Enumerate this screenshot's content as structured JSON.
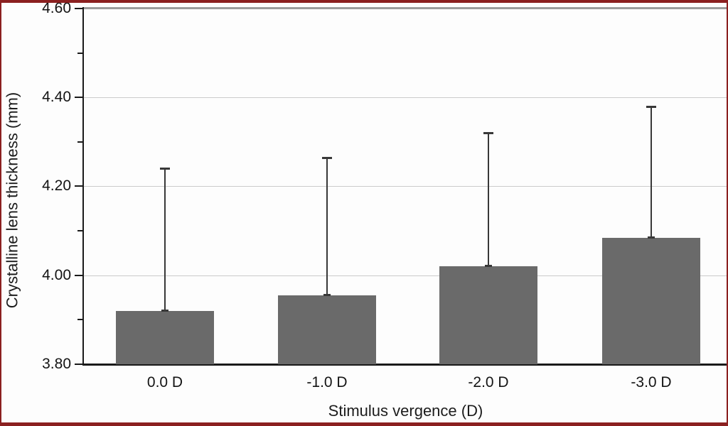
{
  "figure": {
    "frame_color": "#8b2020",
    "background": "#fdfdfd",
    "top_border_line_color": "#9c9c9c",
    "gridline_color": "#cbcbcb",
    "axis_color": "#1a1a1a"
  },
  "chart_data": {
    "type": "bar",
    "title": "",
    "xlabel": "Stimulus vergence (D)",
    "ylabel": "Crystalline lens thickness (mm)",
    "categories": [
      "0.0 D",
      "-1.0 D",
      "-2.0 D",
      "-3.0 D"
    ],
    "values": [
      3.92,
      3.955,
      4.02,
      4.085
    ],
    "error_top": [
      4.24,
      4.265,
      4.32,
      4.38
    ],
    "ylim": [
      3.8,
      4.6
    ],
    "y_major_tick_values": [
      4.6,
      4.4,
      4.2,
      4.0,
      3.8
    ],
    "y_tick_labels": [
      "4.60",
      "4.40",
      "4.20",
      "4.00",
      "3.80"
    ],
    "y_minor_tick_values": [
      4.5,
      4.3,
      4.1,
      3.9
    ],
    "grid": "horizontal-major",
    "legend": "none",
    "bar_color": "#6a6a6a",
    "error_bar_color": "#383838",
    "notes": "single series, upward error bars only, plot area clipped at right edge"
  }
}
